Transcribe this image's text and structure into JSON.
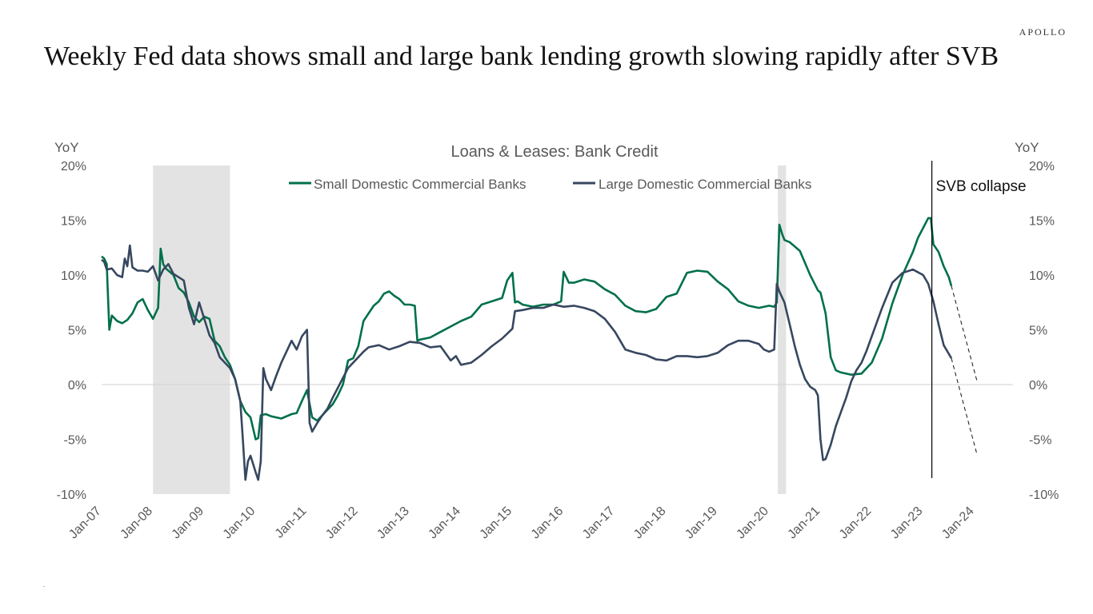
{
  "brand": "APOLLO",
  "headline": "Weekly Fed data shows small and large bank lending growth slowing rapidly after SVB",
  "footnote": ".",
  "chart_data": {
    "type": "line",
    "title": "Loans & Leases: Bank Credit",
    "ylabel_left": "YoY",
    "ylabel_right": "YoY",
    "xlim": [
      2007.0,
      2024.75
    ],
    "ylim": [
      -10,
      20
    ],
    "y_ticks": [
      "-10%",
      "-5%",
      "0%",
      "5%",
      "10%",
      "15%",
      "20%"
    ],
    "y_tick_values": [
      -10,
      -5,
      0,
      5,
      10,
      15,
      20
    ],
    "x_ticks": [
      "Jan-07",
      "Jan-08",
      "Jan-09",
      "Jan-10",
      "Jan-11",
      "Jan-12",
      "Jan-13",
      "Jan-14",
      "Jan-15",
      "Jan-16",
      "Jan-17",
      "Jan-18",
      "Jan-19",
      "Jan-20",
      "Jan-21",
      "Jan-22",
      "Jan-23",
      "Jan-24"
    ],
    "x_tick_values": [
      2007,
      2008,
      2009,
      2010,
      2011,
      2012,
      2013,
      2014,
      2015,
      2016,
      2017,
      2018,
      2019,
      2020,
      2021,
      2022,
      2023,
      2024
    ],
    "recessions": [
      [
        2008.0,
        2009.5
      ],
      [
        2020.17,
        2020.33
      ]
    ],
    "legend_position": "top-center",
    "series": [
      {
        "name": "Small Domestic Commercial Banks",
        "color": "#00704A",
        "x": [
          2007.0,
          2007.05,
          2007.1,
          2007.15,
          2007.2,
          2007.3,
          2007.4,
          2007.5,
          2007.6,
          2007.7,
          2007.8,
          2007.9,
          2008.0,
          2008.1,
          2008.15,
          2008.2,
          2008.25,
          2008.3,
          2008.4,
          2008.5,
          2008.6,
          2008.7,
          2008.8,
          2008.9,
          2009.0,
          2009.1,
          2009.2,
          2009.3,
          2009.4,
          2009.5,
          2009.6,
          2009.7,
          2009.8,
          2009.9,
          2010.0,
          2010.05,
          2010.1,
          2010.2,
          2010.3,
          2010.5,
          2010.7,
          2010.8,
          2010.9,
          2011.0,
          2011.1,
          2011.2,
          2011.3,
          2011.4,
          2011.5,
          2011.6,
          2011.7,
          2011.8,
          2011.9,
          2012.0,
          2012.1,
          2012.2,
          2012.3,
          2012.4,
          2012.5,
          2012.6,
          2012.7,
          2012.8,
          2012.9,
          2013.0,
          2013.1,
          2013.15,
          2013.2,
          2013.4,
          2013.6,
          2013.8,
          2014.0,
          2014.2,
          2014.4,
          2014.6,
          2014.8,
          2014.9,
          2015.0,
          2015.05,
          2015.1,
          2015.2,
          2015.4,
          2015.6,
          2015.8,
          2015.95,
          2016.0,
          2016.1,
          2016.2,
          2016.4,
          2016.6,
          2016.8,
          2017.0,
          2017.2,
          2017.4,
          2017.6,
          2017.8,
          2018.0,
          2018.2,
          2018.4,
          2018.6,
          2018.8,
          2019.0,
          2019.2,
          2019.4,
          2019.6,
          2019.8,
          2020.0,
          2020.1,
          2020.15,
          2020.2,
          2020.25,
          2020.3,
          2020.4,
          2020.6,
          2020.8,
          2020.95,
          2021.0,
          2021.1,
          2021.2,
          2021.3,
          2021.4,
          2021.6,
          2021.8,
          2022.0,
          2022.2,
          2022.4,
          2022.6,
          2022.8,
          2022.9,
          2023.0,
          2023.1,
          2023.15,
          2023.2,
          2023.3,
          2023.4,
          2023.5,
          2023.55
        ],
        "values": [
          11.7,
          11.5,
          11.0,
          5.0,
          6.3,
          5.8,
          5.6,
          5.9,
          6.5,
          7.5,
          7.8,
          6.8,
          6.0,
          7.0,
          12.4,
          11.0,
          10.6,
          10.4,
          10.0,
          8.8,
          8.4,
          7.5,
          6.2,
          5.7,
          6.2,
          6.0,
          4.0,
          3.5,
          2.5,
          1.8,
          0.5,
          -1.5,
          -2.5,
          -3.0,
          -5.0,
          -4.9,
          -2.8,
          -2.7,
          -2.9,
          -3.1,
          -2.7,
          -2.6,
          -1.5,
          -0.5,
          -3.0,
          -3.3,
          -2.8,
          -2.3,
          -1.8,
          -1.0,
          0.0,
          2.2,
          2.4,
          3.5,
          5.8,
          6.5,
          7.2,
          7.6,
          8.3,
          8.5,
          8.1,
          7.8,
          7.3,
          7.3,
          7.2,
          4.0,
          4.1,
          4.3,
          4.8,
          5.3,
          5.8,
          6.2,
          7.3,
          7.6,
          7.9,
          9.5,
          10.2,
          7.5,
          7.6,
          7.3,
          7.1,
          7.3,
          7.3,
          7.6,
          10.3,
          9.3,
          9.3,
          9.6,
          9.4,
          8.7,
          8.2,
          7.2,
          6.7,
          6.6,
          6.9,
          8.0,
          8.3,
          10.2,
          10.4,
          10.3,
          9.4,
          8.7,
          7.6,
          7.2,
          7.0,
          7.2,
          7.1,
          7.5,
          14.6,
          13.8,
          13.2,
          13.0,
          12.2,
          10.0,
          8.6,
          8.4,
          6.5,
          2.5,
          1.3,
          1.1,
          0.9,
          1.0,
          2.0,
          4.2,
          7.4,
          10.0,
          12.1,
          13.4,
          14.3,
          15.2,
          15.2,
          12.8,
          12.1,
          10.8,
          9.8,
          9.0
        ]
      },
      {
        "name": "Large Domestic Commercial Banks",
        "color": "#37475F",
        "x": [
          2007.0,
          2007.05,
          2007.1,
          2007.2,
          2007.3,
          2007.4,
          2007.45,
          2007.5,
          2007.55,
          2007.6,
          2007.7,
          2007.8,
          2007.9,
          2008.0,
          2008.1,
          2008.2,
          2008.3,
          2008.4,
          2008.5,
          2008.6,
          2008.7,
          2008.8,
          2008.9,
          2009.0,
          2009.1,
          2009.2,
          2009.3,
          2009.4,
          2009.5,
          2009.6,
          2009.7,
          2009.75,
          2009.8,
          2009.85,
          2009.9,
          2010.0,
          2010.05,
          2010.1,
          2010.15,
          2010.2,
          2010.3,
          2010.4,
          2010.5,
          2010.6,
          2010.7,
          2010.8,
          2010.9,
          2011.0,
          2011.05,
          2011.1,
          2011.2,
          2011.3,
          2011.4,
          2011.5,
          2011.6,
          2011.8,
          2012.0,
          2012.1,
          2012.2,
          2012.4,
          2012.6,
          2012.8,
          2013.0,
          2013.2,
          2013.4,
          2013.6,
          2013.8,
          2013.9,
          2014.0,
          2014.2,
          2014.4,
          2014.6,
          2014.8,
          2015.0,
          2015.05,
          2015.2,
          2015.4,
          2015.6,
          2015.8,
          2016.0,
          2016.2,
          2016.4,
          2016.6,
          2016.8,
          2017.0,
          2017.2,
          2017.4,
          2017.6,
          2017.8,
          2018.0,
          2018.2,
          2018.4,
          2018.6,
          2018.8,
          2019.0,
          2019.2,
          2019.4,
          2019.6,
          2019.8,
          2019.9,
          2020.0,
          2020.1,
          2020.15,
          2020.2,
          2020.3,
          2020.4,
          2020.5,
          2020.6,
          2020.7,
          2020.8,
          2020.9,
          2020.95,
          2021.0,
          2021.05,
          2021.1,
          2021.2,
          2021.3,
          2021.4,
          2021.5,
          2021.6,
          2021.7,
          2021.8,
          2021.9,
          2022.0,
          2022.2,
          2022.4,
          2022.6,
          2022.8,
          2023.0,
          2023.1,
          2023.2,
          2023.3,
          2023.4,
          2023.5,
          2023.55
        ],
        "values": [
          11.4,
          11.2,
          10.5,
          10.6,
          10.0,
          9.8,
          11.5,
          10.8,
          12.7,
          10.7,
          10.4,
          10.4,
          10.3,
          10.8,
          9.5,
          10.5,
          11.0,
          10.1,
          9.8,
          9.5,
          7.0,
          5.5,
          7.5,
          6.0,
          4.5,
          3.8,
          2.5,
          2.0,
          1.5,
          0.5,
          -1.5,
          -5.0,
          -8.7,
          -7.0,
          -6.5,
          -8.0,
          -8.7,
          -7.0,
          1.5,
          0.5,
          -0.5,
          0.8,
          2.0,
          3.0,
          4.0,
          3.2,
          4.4,
          5.0,
          -3.5,
          -4.3,
          -3.5,
          -2.8,
          -2.2,
          -1.2,
          -0.3,
          1.5,
          2.5,
          3.0,
          3.4,
          3.6,
          3.2,
          3.5,
          3.9,
          3.8,
          3.4,
          3.5,
          2.2,
          2.6,
          1.8,
          2.0,
          2.7,
          3.5,
          4.2,
          5.1,
          6.7,
          6.8,
          7.0,
          7.0,
          7.3,
          7.1,
          7.2,
          7.0,
          6.7,
          6.0,
          4.8,
          3.2,
          2.9,
          2.7,
          2.3,
          2.2,
          2.6,
          2.6,
          2.5,
          2.6,
          2.9,
          3.6,
          4.0,
          4.0,
          3.7,
          3.2,
          3.0,
          3.2,
          9.2,
          8.5,
          7.5,
          5.5,
          3.5,
          1.8,
          0.5,
          -0.2,
          -0.5,
          -1.0,
          -5.0,
          -6.9,
          -6.8,
          -5.5,
          -3.8,
          -2.5,
          -1.2,
          0.3,
          1.3,
          2.0,
          3.1,
          4.4,
          7.0,
          9.3,
          10.2,
          10.5,
          10.0,
          9.2,
          7.6,
          5.5,
          3.6,
          2.8,
          2.4
        ]
      }
    ],
    "projections": [
      {
        "series": "Small Domestic Commercial Banks",
        "x": [
          2023.55,
          2024.05
        ],
        "values": [
          9.0,
          0.3
        ]
      },
      {
        "series": "Large Domestic Commercial Banks",
        "x": [
          2023.55,
          2024.05
        ],
        "values": [
          2.4,
          -6.4
        ]
      }
    ],
    "annotations": [
      {
        "label": "SVB collapse",
        "x": 2023.17
      }
    ]
  }
}
